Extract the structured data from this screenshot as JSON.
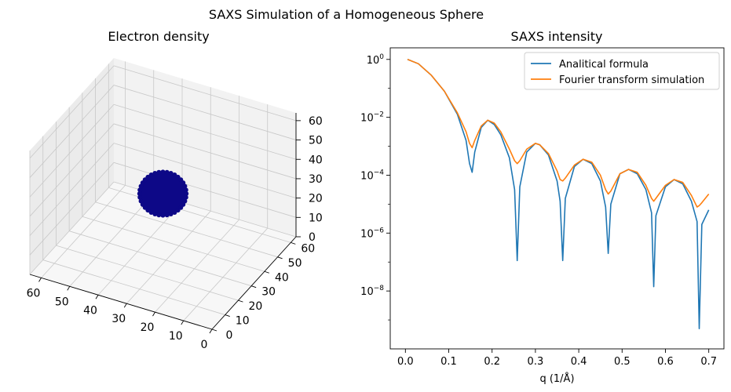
{
  "figure": {
    "suptitle": "SAXS Simulation of a Homogeneous Sphere"
  },
  "chart_data": [
    {
      "type": "scatter3d",
      "title": "Electron density",
      "x_ticks": [
        "0",
        "10",
        "20",
        "30",
        "40",
        "50",
        "60"
      ],
      "y_ticks": [
        "0",
        "10",
        "20",
        "30",
        "40",
        "50",
        "60"
      ],
      "z_ticks": [
        "0",
        "10",
        "20",
        "30",
        "40",
        "50",
        "60"
      ],
      "xlim": [
        0,
        64
      ],
      "ylim": [
        0,
        64
      ],
      "zlim": [
        0,
        64
      ],
      "sphere": {
        "center": [
          32,
          32,
          32
        ],
        "radius": 10,
        "color": "#0d0887"
      },
      "grid": true
    },
    {
      "type": "line",
      "title": "SAXS intensity",
      "xlabel": "q (1/Å)",
      "ylabel": "",
      "xlim": [
        -0.035,
        0.735
      ],
      "ylim_log10": [
        -10.0,
        0.4
      ],
      "yscale": "log",
      "x_ticks": [
        {
          "value": 0.0,
          "label": "0.0"
        },
        {
          "value": 0.1,
          "label": "0.1"
        },
        {
          "value": 0.2,
          "label": "0.2"
        },
        {
          "value": 0.3,
          "label": "0.3"
        },
        {
          "value": 0.4,
          "label": "0.4"
        },
        {
          "value": 0.5,
          "label": "0.5"
        },
        {
          "value": 0.6,
          "label": "0.6"
        },
        {
          "value": 0.7,
          "label": "0.7"
        }
      ],
      "y_ticks": [
        {
          "exp": 0,
          "base": "10",
          "sup": "0"
        },
        {
          "exp": -2,
          "base": "10",
          "sup": "−2"
        },
        {
          "exp": -4,
          "base": "10",
          "sup": "−4"
        },
        {
          "exp": -6,
          "base": "10",
          "sup": "−6"
        },
        {
          "exp": -8,
          "base": "10",
          "sup": "−8"
        }
      ],
      "legend_position": "upper-right",
      "series": [
        {
          "name": "Analitical formula",
          "color": "#1f77b4",
          "x": [
            0.005,
            0.03,
            0.06,
            0.09,
            0.12,
            0.14,
            0.148,
            0.154,
            0.16,
            0.175,
            0.19,
            0.205,
            0.22,
            0.24,
            0.252,
            0.258,
            0.264,
            0.28,
            0.3,
            0.31,
            0.33,
            0.35,
            0.357,
            0.363,
            0.369,
            0.39,
            0.41,
            0.43,
            0.45,
            0.462,
            0.468,
            0.474,
            0.495,
            0.515,
            0.535,
            0.555,
            0.568,
            0.573,
            0.578,
            0.6,
            0.62,
            0.64,
            0.66,
            0.673,
            0.678,
            0.684,
            0.7
          ],
          "y_log10": [
            0,
            -0.15,
            -0.55,
            -1.1,
            -1.9,
            -2.8,
            -3.6,
            -3.9,
            -3.2,
            -2.35,
            -2.1,
            -2.25,
            -2.6,
            -3.4,
            -4.5,
            -6.95,
            -4.4,
            -3.2,
            -2.9,
            -2.95,
            -3.3,
            -4.2,
            -4.9,
            -6.95,
            -4.8,
            -3.7,
            -3.45,
            -3.6,
            -4.2,
            -5.1,
            -6.7,
            -5.0,
            -3.95,
            -3.8,
            -3.95,
            -4.5,
            -5.3,
            -7.85,
            -5.4,
            -4.4,
            -4.15,
            -4.3,
            -4.9,
            -5.6,
            -9.3,
            -5.7,
            -5.2
          ]
        },
        {
          "name": "Fourier transform simulation",
          "color": "#ff7f0e",
          "x": [
            0.005,
            0.03,
            0.06,
            0.09,
            0.12,
            0.14,
            0.148,
            0.154,
            0.16,
            0.175,
            0.19,
            0.205,
            0.22,
            0.24,
            0.252,
            0.258,
            0.264,
            0.28,
            0.3,
            0.31,
            0.33,
            0.35,
            0.357,
            0.363,
            0.369,
            0.39,
            0.41,
            0.43,
            0.45,
            0.462,
            0.468,
            0.474,
            0.495,
            0.515,
            0.535,
            0.555,
            0.568,
            0.573,
            0.578,
            0.6,
            0.62,
            0.64,
            0.66,
            0.673,
            0.678,
            0.684,
            0.7
          ],
          "y_log10": [
            0,
            -0.15,
            -0.55,
            -1.1,
            -1.85,
            -2.5,
            -2.9,
            -3.05,
            -2.8,
            -2.3,
            -2.1,
            -2.2,
            -2.5,
            -3.1,
            -3.5,
            -3.6,
            -3.5,
            -3.1,
            -2.9,
            -2.95,
            -3.25,
            -3.85,
            -4.15,
            -4.2,
            -4.1,
            -3.65,
            -3.45,
            -3.55,
            -4.0,
            -4.5,
            -4.65,
            -4.55,
            -3.95,
            -3.8,
            -3.9,
            -4.35,
            -4.8,
            -4.9,
            -4.8,
            -4.35,
            -4.15,
            -4.25,
            -4.7,
            -5.1,
            -5.05,
            -4.95,
            -4.65
          ]
        }
      ]
    }
  ]
}
